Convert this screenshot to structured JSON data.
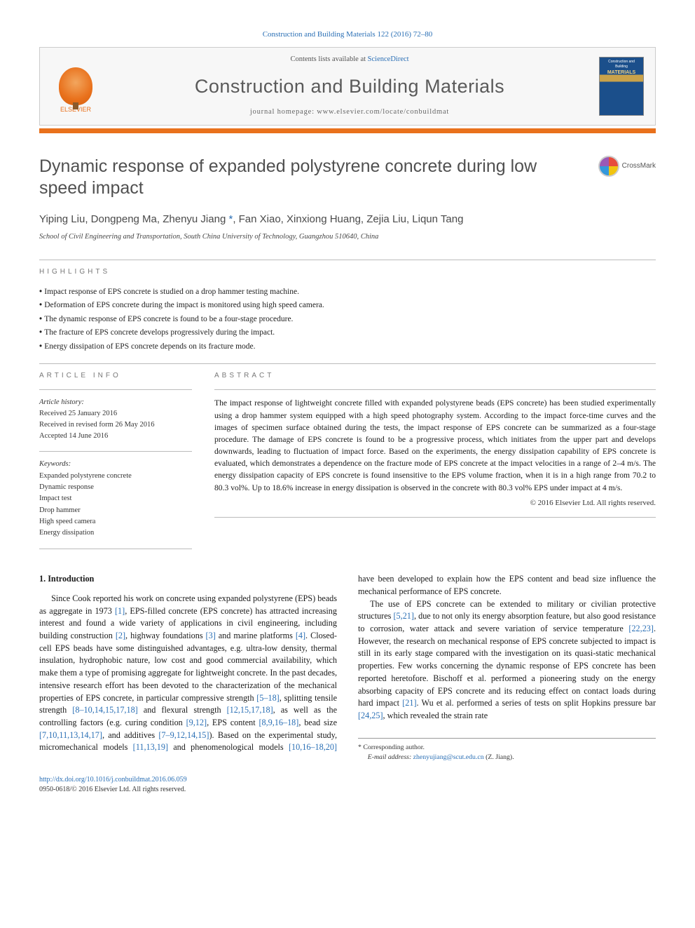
{
  "header": {
    "citation": "Construction and Building Materials 122 (2016) 72–80",
    "contents_prefix": "Contents lists available at ",
    "contents_link": "ScienceDirect",
    "journal_name": "Construction and Building Materials",
    "homepage_prefix": "journal homepage: ",
    "homepage_url": "www.elsevier.com/locate/conbuildmat",
    "publisher_logo_label": "ELSEVIER",
    "cover_text_top": "Construction and Building",
    "cover_text_main": "MATERIALS",
    "crossmark_label": "CrossMark"
  },
  "article": {
    "title": "Dynamic response of expanded polystyrene concrete during low speed impact",
    "authors": "Yiping Liu, Dongpeng Ma, Zhenyu Jiang *, Fan Xiao, Xinxiong Huang, Zejia Liu, Liqun Tang",
    "affiliation": "School of Civil Engineering and Transportation, South China University of Technology, Guangzhou 510640, China"
  },
  "highlights": {
    "label": "highlights",
    "items": [
      "Impact response of EPS concrete is studied on a drop hammer testing machine.",
      "Deformation of EPS concrete during the impact is monitored using high speed camera.",
      "The dynamic response of EPS concrete is found to be a four-stage procedure.",
      "The fracture of EPS concrete develops progressively during the impact.",
      "Energy dissipation of EPS concrete depends on its fracture mode."
    ]
  },
  "info_labels": {
    "article_info": "article info",
    "abstract": "abstract"
  },
  "article_info": {
    "history_title": "Article history:",
    "received": "Received 25 January 2016",
    "revised": "Received in revised form 26 May 2016",
    "accepted": "Accepted 14 June 2016",
    "keywords_title": "Keywords:",
    "keywords": [
      "Expanded polystyrene concrete",
      "Dynamic response",
      "Impact test",
      "Drop hammer",
      "High speed camera",
      "Energy dissipation"
    ]
  },
  "abstract": {
    "text": "The impact response of lightweight concrete filled with expanded polystyrene beads (EPS concrete) has been studied experimentally using a drop hammer system equipped with a high speed photography system. According to the impact force-time curves and the images of specimen surface obtained during the tests, the impact response of EPS concrete can be summarized as a four-stage procedure. The damage of EPS concrete is found to be a progressive process, which initiates from the upper part and develops downwards, leading to fluctuation of impact force. Based on the experiments, the energy dissipation capability of EPS concrete is evaluated, which demonstrates a dependence on the fracture mode of EPS concrete at the impact velocities in a range of 2–4 m/s. The energy dissipation capacity of EPS concrete is found insensitive to the EPS volume fraction, when it is in a high range from 70.2 to 80.3 vol%. Up to 18.6% increase in energy dissipation is observed in the concrete with 80.3 vol% EPS under impact at 4 m/s.",
    "copyright": "© 2016 Elsevier Ltd. All rights reserved."
  },
  "body": {
    "intro_heading": "1. Introduction",
    "p1_a": "Since Cook reported his work on concrete using expanded polystyrene (EPS) beads as aggregate in 1973 ",
    "r1": "[1]",
    "p1_b": ", EPS-filled concrete (EPS concrete) has attracted increasing interest and found a wide variety of applications in civil engineering, including building construction ",
    "r2": "[2]",
    "p1_c": ", highway foundations ",
    "r3": "[3]",
    "p1_d": " and marine platforms ",
    "r4": "[4]",
    "p1_e": ". Closed-cell EPS beads have some distinguished advantages, e.g. ultra-low density, thermal insulation, hydrophobic nature, low cost and good commercial availability, which make them a type of promising aggregate for lightweight concrete. In the past decades, intensive research effort has been devoted to the characterization of the mechanical properties of EPS concrete, in particular compressive strength ",
    "r5": "[5–18]",
    "p1_f": ", splitting tensile strength ",
    "r6": "[8–10,14,15,17,18]",
    "p1_g": " and flexural strength ",
    "r7": "[12,15,17,18]",
    "p1_h": ", as well as the controlling ",
    "p2_a": "factors (e.g. curing condition ",
    "r8": "[9,12]",
    "p2_b": ", EPS content ",
    "r9": "[8,9,16–18]",
    "p2_c": ", bead size ",
    "r10": "[7,10,11,13,14,17]",
    "p2_d": ", and additives ",
    "r11": "[7–9,12,14,15]",
    "p2_e": "). Based on the experimental study, micromechanical models ",
    "r12": "[11,13,19]",
    "p2_f": " and phenomenological models ",
    "r13": "[10,16–18,20]",
    "p2_g": " have been developed to explain how the EPS content and bead size influence the mechanical performance of EPS concrete.",
    "p3_a": "The use of EPS concrete can be extended to military or civilian protective structures ",
    "r14": "[5,21]",
    "p3_b": ", due to not only its energy absorption feature, but also good resistance to corrosion, water attack and severe variation of service temperature ",
    "r15": "[22,23]",
    "p3_c": ". However, the research on mechanical response of EPS concrete subjected to impact is still in its early stage compared with the investigation on its quasi-static mechanical properties. Few works concerning the dynamic response of EPS concrete has been reported heretofore. Bischoff et al. performed a pioneering study on the energy absorbing capacity of EPS concrete and its reducing effect on contact loads during hard impact ",
    "r16": "[21]",
    "p3_d": ". Wu et al. performed a series of tests on split Hopkins pressure bar ",
    "r17": "[24,25]",
    "p3_e": ", which revealed the strain rate"
  },
  "footnote": {
    "corr": "* Corresponding author.",
    "email_label": "E-mail address: ",
    "email": "zhenyujiang@scut.edu.cn",
    "email_who": " (Z. Jiang)."
  },
  "bottom": {
    "doi": "http://dx.doi.org/10.1016/j.conbuildmat.2016.06.059",
    "issn_line": "0950-0618/© 2016 Elsevier Ltd. All rights reserved."
  },
  "colors": {
    "link": "#2a6fb5",
    "accent": "#e9711c",
    "text": "#1a1a1a",
    "muted": "#787878"
  }
}
